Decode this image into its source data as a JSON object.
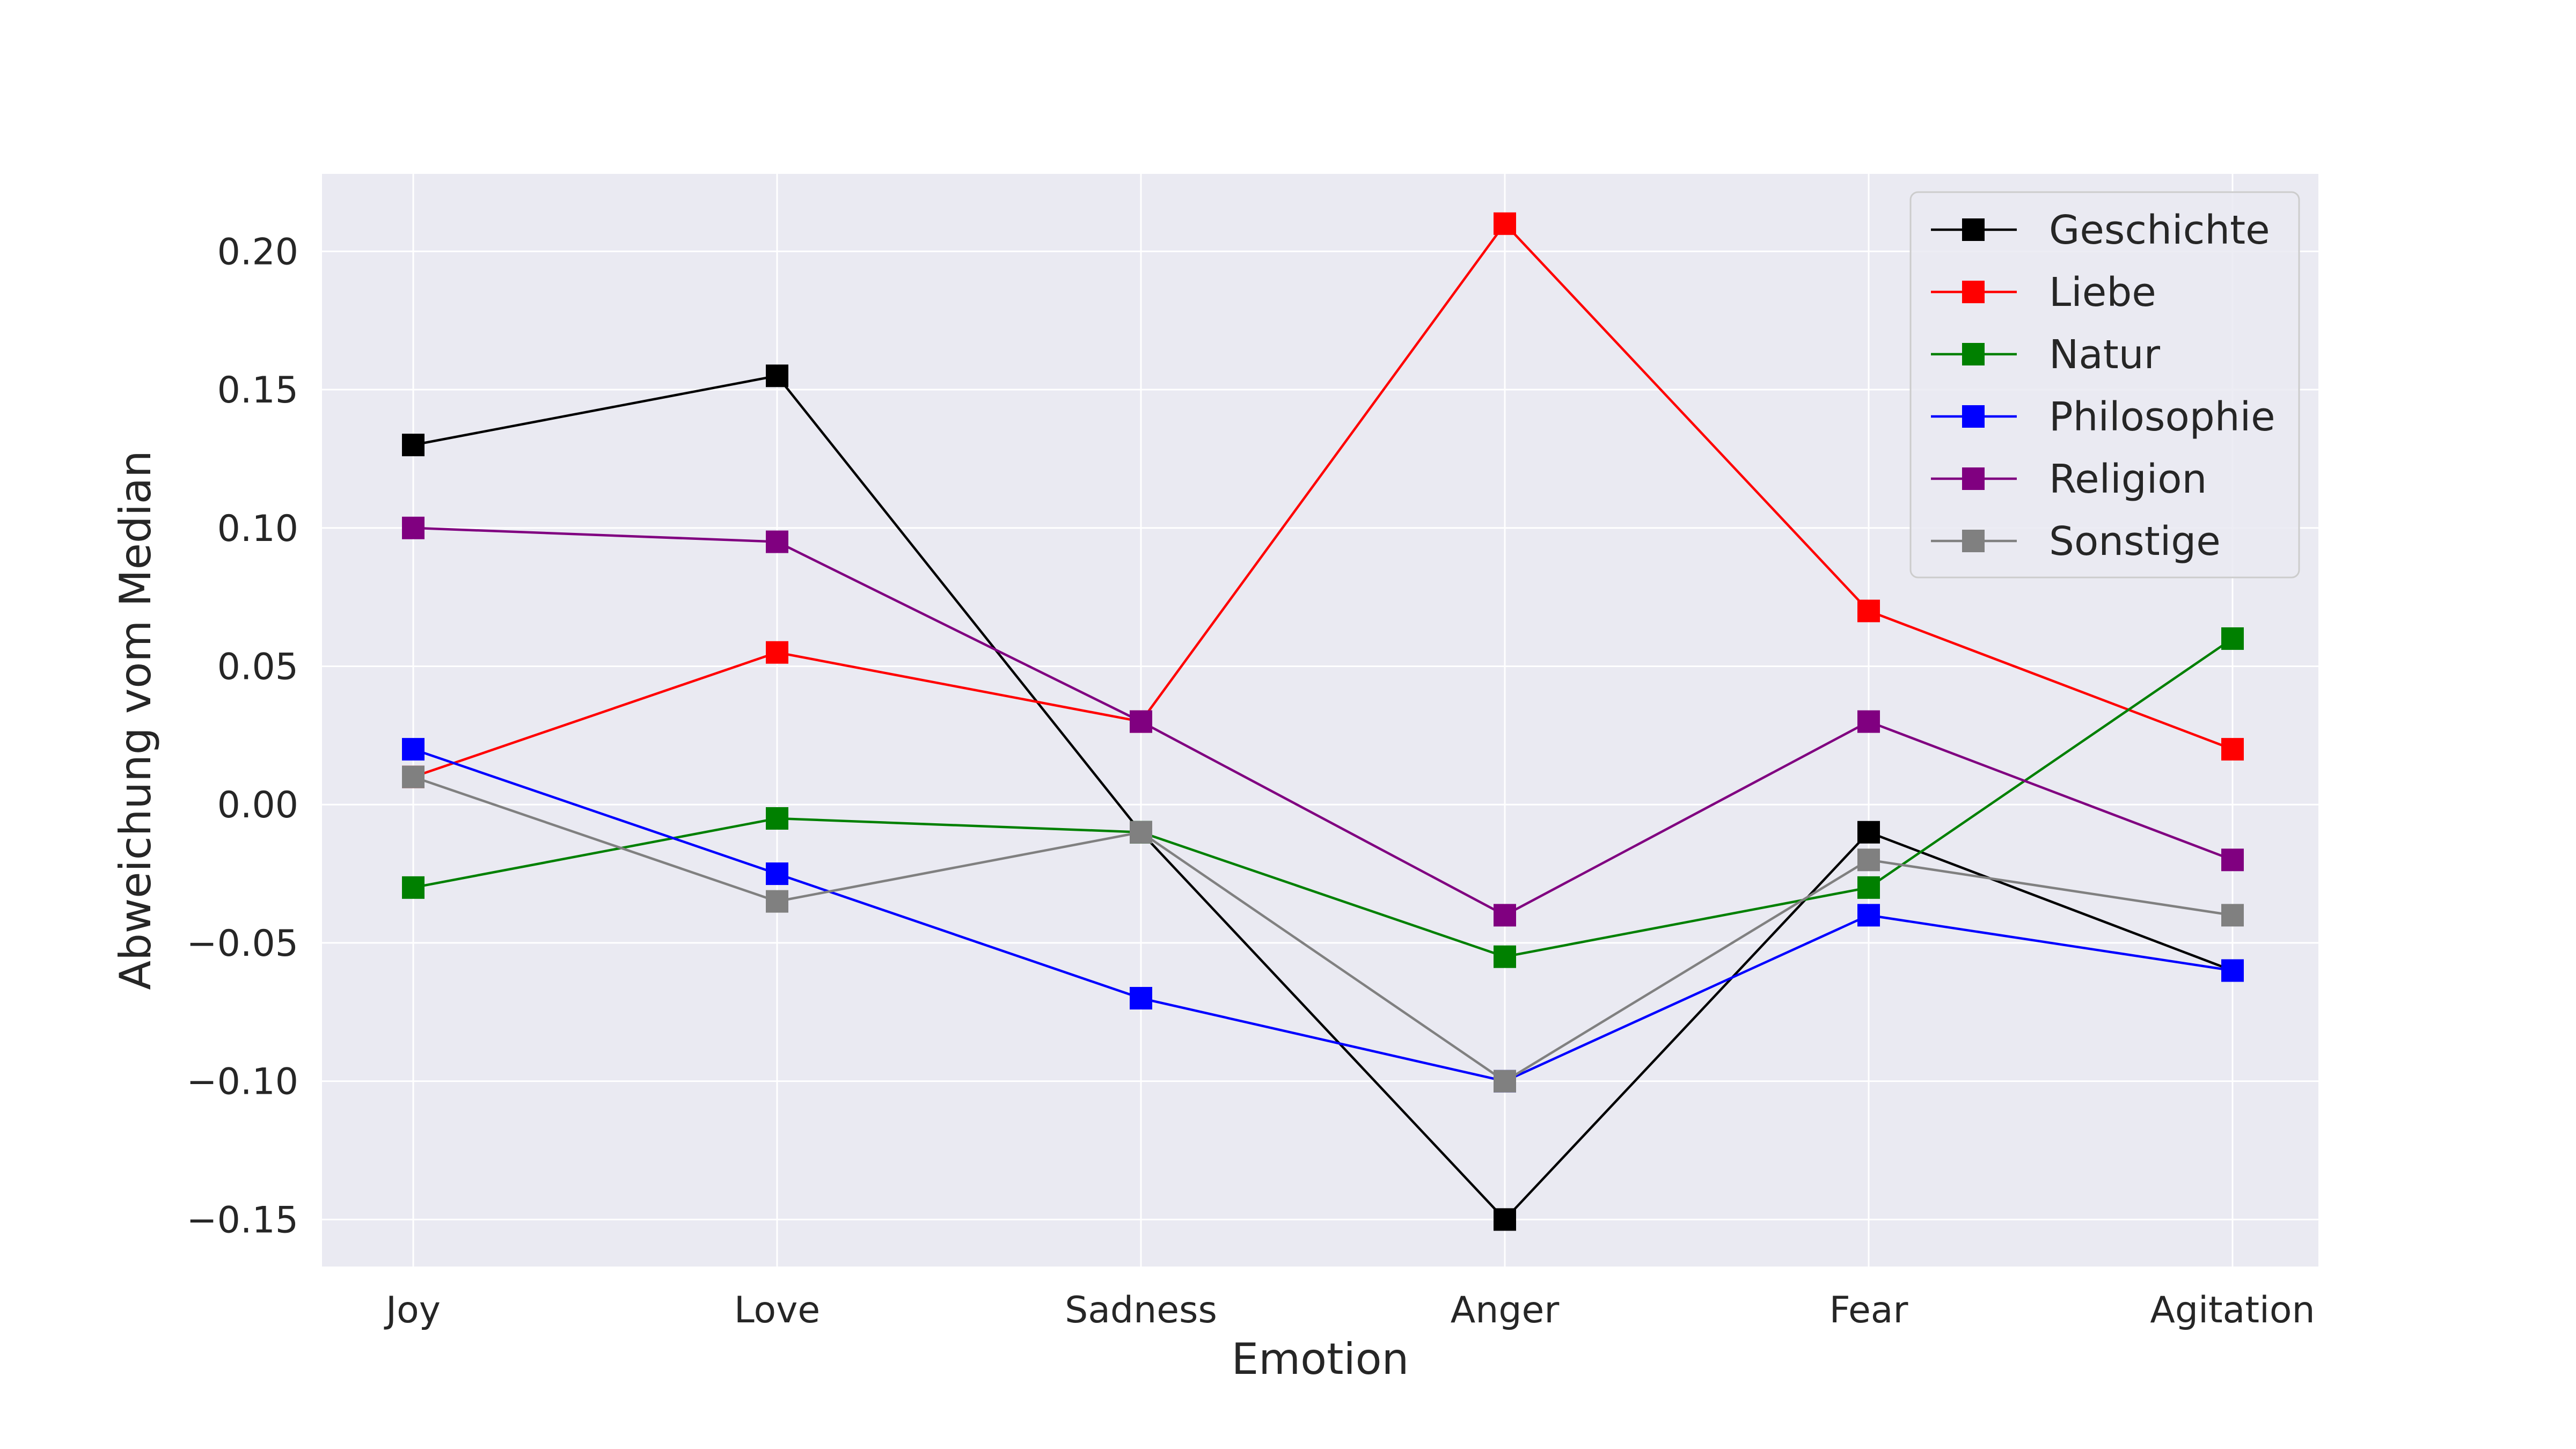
{
  "chart_data": {
    "type": "line",
    "title": "",
    "xlabel": "Emotion",
    "ylabel": "Abweichung vom Median",
    "categories": [
      "Joy",
      "Love",
      "Sadness",
      "Anger",
      "Fear",
      "Agitation"
    ],
    "ylim": [
      -0.167,
      0.228
    ],
    "yticks": [
      -0.15,
      -0.1,
      -0.05,
      0.0,
      0.05,
      0.1,
      0.15,
      0.2
    ],
    "ytick_labels": [
      "−0.15",
      "−0.10",
      "−0.05",
      "0.00",
      "0.05",
      "0.10",
      "0.15",
      "0.20"
    ],
    "grid": true,
    "legend_position": "top-right",
    "marker": "square",
    "series": [
      {
        "name": "Geschichte",
        "color": "#000000",
        "values": [
          0.13,
          0.155,
          -0.01,
          -0.15,
          -0.01,
          -0.06
        ]
      },
      {
        "name": "Liebe",
        "color": "#ff0000",
        "values": [
          0.01,
          0.055,
          0.03,
          0.21,
          0.07,
          0.02
        ]
      },
      {
        "name": "Natur",
        "color": "#008000",
        "values": [
          -0.03,
          -0.005,
          -0.01,
          -0.055,
          -0.03,
          0.06
        ]
      },
      {
        "name": "Philosophie",
        "color": "#0000ff",
        "values": [
          0.02,
          -0.025,
          -0.07,
          -0.1,
          -0.04,
          -0.06
        ]
      },
      {
        "name": "Religion",
        "color": "#800080",
        "values": [
          0.1,
          0.095,
          0.03,
          -0.04,
          0.03,
          -0.02
        ]
      },
      {
        "name": "Sonstige",
        "color": "#808080",
        "values": [
          0.01,
          -0.035,
          -0.01,
          -0.1,
          -0.02,
          -0.04
        ]
      }
    ]
  }
}
